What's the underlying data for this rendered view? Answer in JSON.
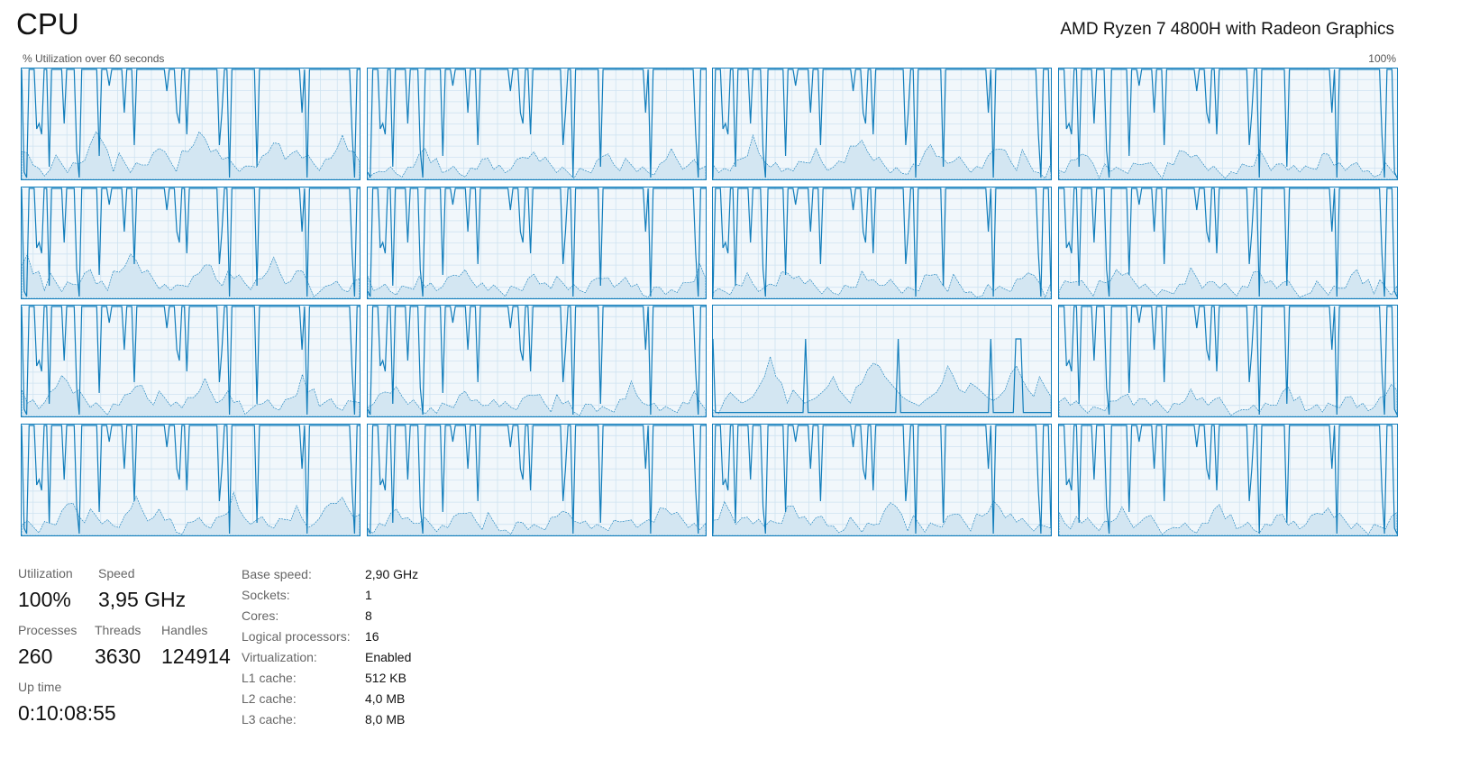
{
  "header": {
    "title": "CPU",
    "cpu_model": "AMD Ryzen 7 4800H with Radeon Graphics",
    "graph_caption": "% Utilization over 60 seconds",
    "graph_max": "100%"
  },
  "colors": {
    "line": "#117dbb",
    "fill": "#d3e6f2",
    "grid": "#cfe3f1",
    "background": "#f1f7fb"
  },
  "stats": {
    "utilization": {
      "label": "Utilization",
      "value": "100%"
    },
    "speed": {
      "label": "Speed",
      "value": "3,95 GHz"
    },
    "processes": {
      "label": "Processes",
      "value": "260"
    },
    "threads": {
      "label": "Threads",
      "value": "3630"
    },
    "handles": {
      "label": "Handles",
      "value": "124914"
    },
    "uptime": {
      "label": "Up time",
      "value": "0:10:08:55"
    }
  },
  "properties": [
    {
      "key": "Base speed:",
      "value": "2,90 GHz"
    },
    {
      "key": "Sockets:",
      "value": "1"
    },
    {
      "key": "Cores:",
      "value": "8"
    },
    {
      "key": "Logical processors:",
      "value": "16"
    },
    {
      "key": "Virtualization:",
      "value": "Enabled"
    },
    {
      "key": "L1 cache:",
      "value": "512 KB"
    },
    {
      "key": "L2 cache:",
      "value": "4,0 MB"
    },
    {
      "key": "L3 cache:",
      "value": "8,0 MB"
    }
  ],
  "chart_data": {
    "type": "line",
    "logical_processor_count": 16,
    "x_range_seconds": [
      0,
      60
    ],
    "ylim": [
      0,
      100
    ],
    "grid": true,
    "base_utilization": [
      100,
      5,
      0,
      100,
      100,
      100,
      45,
      50,
      40,
      100,
      100,
      10,
      100,
      100,
      100,
      100,
      100,
      50,
      100,
      100,
      100,
      100,
      25,
      0,
      100,
      100,
      100,
      100,
      100,
      100,
      100,
      20,
      100,
      100,
      100,
      85,
      100,
      100,
      100,
      100,
      100,
      60,
      100,
      100,
      100,
      30,
      100,
      100,
      100,
      100,
      100,
      100,
      100,
      100,
      100,
      100,
      100,
      100,
      80,
      100,
      100,
      100,
      60,
      50,
      100,
      100,
      40,
      100,
      100,
      100,
      100,
      100,
      100,
      100,
      100,
      100,
      100,
      100,
      100,
      30,
      60,
      100,
      100,
      0,
      100,
      100,
      100,
      100,
      100,
      100,
      100,
      100,
      100,
      100,
      10,
      100,
      100,
      100,
      100,
      100,
      100,
      100,
      100,
      100,
      100,
      100,
      100,
      100,
      100,
      100,
      100,
      100,
      60,
      100,
      0,
      100,
      100,
      100,
      100,
      100,
      100,
      100,
      100,
      100,
      100,
      100,
      100,
      100,
      100,
      100,
      100,
      100,
      40,
      0,
      100,
      100
    ],
    "kernel_base": [
      30,
      22,
      15,
      5,
      2,
      12,
      18,
      14,
      10,
      12,
      15,
      22,
      30,
      45,
      30,
      25,
      10,
      20,
      15,
      10,
      12,
      14,
      18,
      22,
      30,
      20,
      15,
      10,
      22,
      25,
      35,
      40,
      38,
      30,
      25,
      20,
      15,
      12,
      10,
      8,
      12,
      15,
      18,
      25,
      38,
      30,
      20,
      18,
      25,
      22,
      18,
      14,
      12,
      15,
      20,
      32,
      38,
      28,
      20,
      15
    ],
    "cores": [
      {
        "peak_kernel": 1.0
      },
      {
        "peak_kernel": 0.6
      },
      {
        "peak_kernel": 0.8
      },
      {
        "peak_kernel": 0.6
      },
      {
        "peak_kernel": 0.9
      },
      {
        "peak_kernel": 0.6
      },
      {
        "peak_kernel": 0.6
      },
      {
        "peak_kernel": 0.6
      },
      {
        "peak_kernel": 0.8
      },
      {
        "peak_kernel": 0.6
      },
      {
        "peak_kernel": 1.1,
        "idle": true
      },
      {
        "peak_kernel": 0.6
      },
      {
        "peak_kernel": 0.8
      },
      {
        "peak_kernel": 0.6
      },
      {
        "peak_kernel": 0.7
      },
      {
        "peak_kernel": 0.6
      }
    ]
  }
}
